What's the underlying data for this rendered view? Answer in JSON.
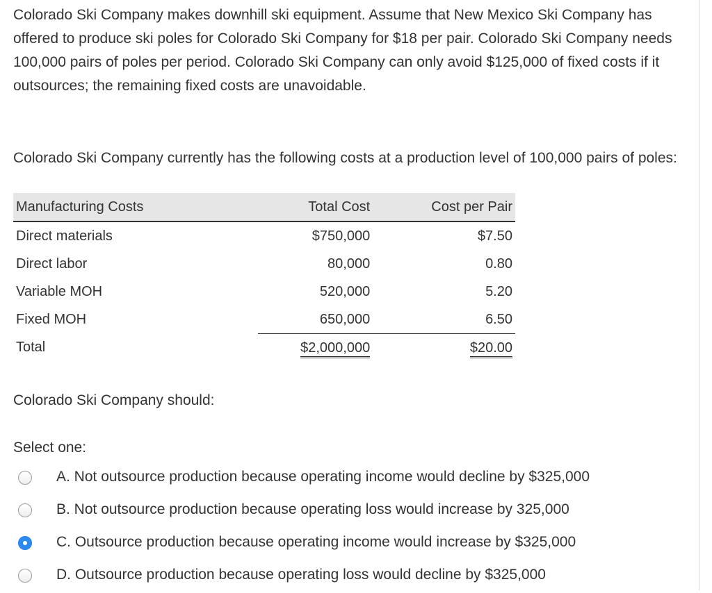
{
  "question": {
    "intro": "Colorado Ski Company makes downhill ski equipment. Assume that New Mexico Ski Company has offered to produce ski poles for Colorado Ski Company for $18 per pair. Colorado Ski Company needs 100,000 pairs of poles per period. Colorado Ski Company can only avoid $125,000 of fixed costs if it outsources; the remaining fixed costs are unavoidable.",
    "table_intro": "Colorado Ski Company currently has the following costs at a production level of 100,000 pairs of poles:",
    "prompt": "Colorado Ski Company should:"
  },
  "cost_table": {
    "headers": [
      "Manufacturing Costs",
      "Total Cost",
      "Cost per Pair"
    ],
    "rows": [
      {
        "label": "Direct materials",
        "total": "$750,000",
        "per_pair": "$7.50"
      },
      {
        "label": "Direct labor",
        "total": "80,000",
        "per_pair": "0.80"
      },
      {
        "label": "Variable MOH",
        "total": "520,000",
        "per_pair": "5.20"
      },
      {
        "label": "Fixed MOH",
        "total": "650,000",
        "per_pair": "6.50"
      }
    ],
    "total": {
      "label": "Total",
      "total": "$2,000,000",
      "per_pair": "$20.00"
    }
  },
  "answer": {
    "select_label": "Select one:",
    "options": [
      {
        "text": "A. Not outsource production because operating income would decline by $325,000",
        "selected": false
      },
      {
        "text": "B. Not outsource production because operating loss would increase by 325,000",
        "selected": false
      },
      {
        "text": "C. Outsource production because operating income would increase by $325,000",
        "selected": true
      },
      {
        "text": "D. Outsource production because operating loss would decline by $325,000",
        "selected": false
      }
    ]
  },
  "colors": {
    "text": "#333333",
    "header_bg": "#e6e6e6",
    "radio_selected": "#2b8bf0"
  }
}
